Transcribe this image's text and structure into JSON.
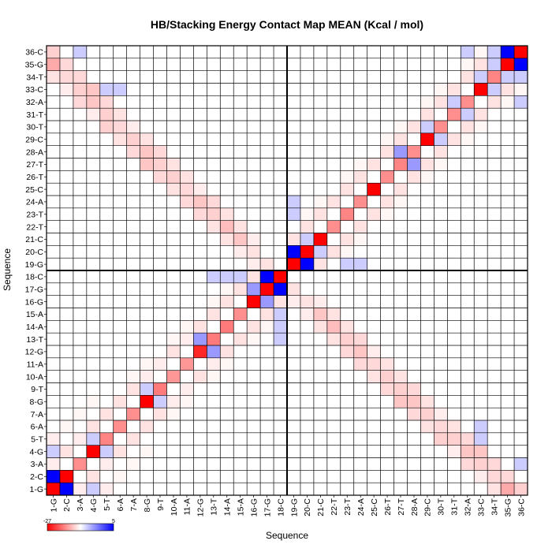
{
  "chart_data": {
    "type": "heatmap",
    "title": "HB/Stacking Energy Contact Map MEAN (Kcal / mol)",
    "xlabel": "Sequence",
    "ylabel": "Sequence",
    "labels": [
      "1-G",
      "2-C",
      "3-A",
      "4-G",
      "5-T",
      "6-A",
      "7-A",
      "8-G",
      "9-T",
      "10-A",
      "11-A",
      "12-G",
      "13-T",
      "14-A",
      "15-A",
      "16-G",
      "17-G",
      "18-C",
      "19-G",
      "20-C",
      "21-C",
      "22-T",
      "23-T",
      "24-A",
      "25-C",
      "26-T",
      "27-T",
      "28-A",
      "29-C",
      "30-T",
      "31-T",
      "32-A",
      "33-C",
      "34-T",
      "35-G",
      "36-C"
    ],
    "colorbar": {
      "min": -27,
      "max": 5,
      "min_label": "-27",
      "max_label": "5",
      "colors": [
        "#ff0000",
        "#ffffff",
        "#0000ff"
      ]
    },
    "legend_placement": "bottom-left",
    "strand_divider_after": 18,
    "cells": [
      [
        0,
        0,
        -27
      ],
      [
        1,
        1,
        -27
      ],
      [
        0,
        1,
        5
      ],
      [
        2,
        2,
        -12
      ],
      [
        3,
        3,
        -27
      ],
      [
        4,
        4,
        -13
      ],
      [
        5,
        5,
        -12
      ],
      [
        6,
        6,
        -12
      ],
      [
        7,
        7,
        -27
      ],
      [
        8,
        8,
        -14
      ],
      [
        9,
        9,
        -11
      ],
      [
        10,
        10,
        -11
      ],
      [
        11,
        11,
        -23
      ],
      [
        12,
        12,
        -14
      ],
      [
        13,
        13,
        -14
      ],
      [
        14,
        14,
        -12
      ],
      [
        15,
        15,
        -27
      ],
      [
        16,
        16,
        -27
      ],
      [
        17,
        17,
        -27
      ],
      [
        16,
        17,
        5
      ],
      [
        18,
        18,
        -27
      ],
      [
        19,
        19,
        -27
      ],
      [
        18,
        19,
        5
      ],
      [
        20,
        20,
        -27
      ],
      [
        21,
        21,
        -12
      ],
      [
        22,
        22,
        -13
      ],
      [
        23,
        23,
        -12
      ],
      [
        24,
        24,
        -27
      ],
      [
        25,
        25,
        -12
      ],
      [
        26,
        26,
        -13
      ],
      [
        27,
        27,
        -12
      ],
      [
        28,
        28,
        -27
      ],
      [
        29,
        29,
        -12
      ],
      [
        30,
        30,
        -12
      ],
      [
        31,
        31,
        -12
      ],
      [
        32,
        32,
        -27
      ],
      [
        33,
        33,
        -13
      ],
      [
        34,
        34,
        -27
      ],
      [
        35,
        35,
        -27
      ],
      [
        34,
        35,
        5
      ],
      [
        0,
        2,
        -2
      ],
      [
        1,
        3,
        -3
      ],
      [
        2,
        4,
        -2
      ],
      [
        3,
        5,
        -3
      ],
      [
        4,
        6,
        -3
      ],
      [
        5,
        7,
        -3
      ],
      [
        6,
        8,
        -3
      ],
      [
        7,
        9,
        -2
      ],
      [
        8,
        10,
        -2
      ],
      [
        9,
        11,
        -3
      ],
      [
        10,
        12,
        -2
      ],
      [
        11,
        13,
        -3
      ],
      [
        12,
        14,
        -3
      ],
      [
        13,
        15,
        -3
      ],
      [
        14,
        16,
        -3
      ],
      [
        15,
        17,
        -3
      ],
      [
        18,
        20,
        -3
      ],
      [
        19,
        21,
        -3
      ],
      [
        20,
        22,
        -3
      ],
      [
        21,
        23,
        -3
      ],
      [
        22,
        24,
        -3
      ],
      [
        23,
        25,
        -3
      ],
      [
        24,
        26,
        -3
      ],
      [
        25,
        27,
        -3
      ],
      [
        26,
        28,
        -3
      ],
      [
        27,
        29,
        -3
      ],
      [
        28,
        30,
        -3
      ],
      [
        29,
        31,
        -3
      ],
      [
        30,
        32,
        -3
      ],
      [
        31,
        33,
        -3
      ],
      [
        32,
        34,
        -3
      ],
      [
        33,
        35,
        -3
      ],
      [
        0,
        34,
        -9
      ],
      [
        1,
        33,
        -4
      ],
      [
        2,
        32,
        -5
      ],
      [
        3,
        31,
        -6
      ],
      [
        4,
        30,
        -5
      ],
      [
        5,
        29,
        -4
      ],
      [
        6,
        28,
        -5
      ],
      [
        7,
        27,
        -6
      ],
      [
        8,
        26,
        -5
      ],
      [
        9,
        25,
        -5
      ],
      [
        10,
        24,
        -4
      ],
      [
        11,
        23,
        -6
      ],
      [
        12,
        22,
        -5
      ],
      [
        13,
        21,
        -7
      ],
      [
        14,
        20,
        -6
      ],
      [
        15,
        19,
        -3
      ],
      [
        16,
        18,
        -3
      ],
      [
        0,
        35,
        -5
      ],
      [
        0,
        33,
        -3
      ],
      [
        1,
        34,
        -4
      ],
      [
        1,
        32,
        -2
      ],
      [
        2,
        33,
        -4
      ],
      [
        2,
        31,
        -4
      ],
      [
        3,
        32,
        -6
      ],
      [
        3,
        30,
        -2
      ],
      [
        4,
        31,
        -4
      ],
      [
        4,
        29,
        -5
      ],
      [
        5,
        30,
        -3
      ],
      [
        5,
        28,
        -3
      ],
      [
        6,
        29,
        -2
      ],
      [
        6,
        27,
        -4
      ],
      [
        7,
        28,
        -3
      ],
      [
        7,
        26,
        -6
      ],
      [
        8,
        27,
        -4
      ],
      [
        8,
        25,
        -4
      ],
      [
        9,
        26,
        -3
      ],
      [
        9,
        24,
        -3
      ],
      [
        10,
        25,
        -3
      ],
      [
        10,
        23,
        -4
      ],
      [
        11,
        24,
        -2
      ],
      [
        11,
        22,
        -4
      ],
      [
        12,
        23,
        -4
      ],
      [
        12,
        21,
        -3
      ],
      [
        13,
        22,
        -3
      ],
      [
        13,
        20,
        -3
      ],
      [
        14,
        21,
        -3
      ],
      [
        14,
        19,
        -2
      ],
      [
        15,
        20,
        -2
      ],
      [
        15,
        18,
        -2
      ],
      [
        0,
        4,
        -2
      ],
      [
        1,
        5,
        -1
      ],
      [
        2,
        6,
        -1
      ],
      [
        3,
        7,
        -1
      ],
      [
        6,
        9,
        -1
      ],
      [
        7,
        10,
        -1
      ],
      [
        9,
        12,
        -1
      ],
      [
        10,
        13,
        -1
      ],
      [
        12,
        15,
        -1
      ],
      [
        13,
        16,
        -1
      ],
      [
        19,
        22,
        -1
      ],
      [
        20,
        23,
        -1
      ],
      [
        22,
        25,
        -1
      ],
      [
        23,
        26,
        -1
      ],
      [
        25,
        28,
        -1
      ],
      [
        26,
        29,
        -1
      ],
      [
        28,
        31,
        -1
      ],
      [
        29,
        32,
        -1
      ],
      [
        31,
        34,
        -1
      ],
      [
        32,
        35,
        -1
      ],
      [
        3,
        4,
        1
      ],
      [
        7,
        8,
        1
      ],
      [
        11,
        12,
        2
      ],
      [
        15,
        16,
        2
      ],
      [
        16,
        16.5,
        0
      ],
      [
        19,
        20,
        1
      ],
      [
        26,
        27,
        2
      ],
      [
        28,
        29,
        1
      ],
      [
        30,
        31,
        1
      ],
      [
        32,
        33,
        1
      ],
      [
        33,
        34,
        1
      ],
      [
        12,
        17,
        1
      ],
      [
        13,
        17,
        1
      ],
      [
        14,
        17,
        1
      ],
      [
        18,
        22,
        1
      ],
      [
        18,
        23,
        1
      ],
      [
        4,
        32,
        1
      ],
      [
        5,
        32,
        1
      ],
      [
        0,
        3,
        1
      ],
      [
        35,
        31,
        1
      ],
      [
        33,
        35,
        1
      ],
      [
        2,
        35,
        1
      ]
    ]
  }
}
